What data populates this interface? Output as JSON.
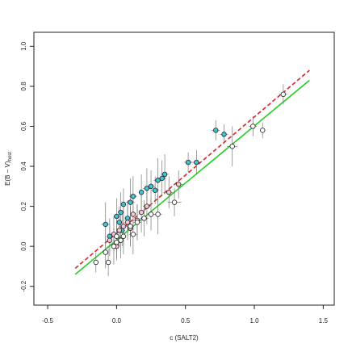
{
  "chart_data": {
    "type": "scatter",
    "xlabel": "c (SALT2)",
    "ylabel": "E(B − V)",
    "ylabel_sub": "host",
    "xlim": [
      -0.6,
      1.58
    ],
    "ylim": [
      -0.294,
      1.07
    ],
    "xticks": [
      -0.5,
      {
        "value": 0,
        "label": "0.0"
      },
      0.5,
      {
        "value": 1,
        "label": "1.0"
      },
      1.5
    ],
    "yticks": [
      -0.2,
      {
        "value": 0,
        "label": "0.0"
      },
      0.2,
      0.4,
      0.6,
      0.8,
      {
        "value": 1,
        "label": "1.0"
      }
    ],
    "series": [
      {
        "color": "#3fc4d4",
        "x": [
          0.58,
          0.52,
          0.72,
          0.78,
          0.35,
          0.3,
          0.33,
          0.25,
          0.22,
          0.18,
          0.1,
          0.05,
          0.03,
          0.0,
          -0.08,
          0.02,
          0.08,
          0.12,
          0.28,
          0.04,
          -0.05
        ],
        "values": [
          0.42,
          0.42,
          0.58,
          0.56,
          0.36,
          0.33,
          0.34,
          0.3,
          0.29,
          0.27,
          0.22,
          0.21,
          0.17,
          0.15,
          0.11,
          0.12,
          0.14,
          0.25,
          0.28,
          0.08,
          0.05
        ],
        "yerr": [
          0.06,
          0.05,
          0.05,
          0.05,
          0.1,
          0.11,
          0.09,
          0.08,
          0.1,
          0.09,
          0.12,
          0.08,
          0.1,
          0.09,
          0.11,
          0.08,
          0.09,
          0.1,
          0.07,
          0.08,
          0.09
        ],
        "xerr": [
          0.04,
          0.03,
          0.03,
          0.03,
          0.03,
          0.03,
          0.03,
          0.03,
          0.03,
          0.02,
          0.03,
          0.02,
          0.02,
          0.02,
          0.03,
          0.02,
          0.02,
          0.03,
          0.03,
          0.02,
          0.02
        ]
      },
      {
        "color": "#f6c6cf",
        "x": [
          0.45,
          0.38,
          0.22,
          0.18,
          0.12,
          0.08,
          0.05,
          0.02,
          -0.02,
          -0.05,
          0.0,
          0.1,
          0.15
        ],
        "values": [
          0.31,
          0.27,
          0.2,
          0.17,
          0.16,
          0.12,
          0.1,
          0.08,
          0.06,
          0.03,
          0.0,
          0.09,
          0.13
        ],
        "yerr": [
          0.07,
          0.08,
          0.09,
          0.1,
          0.08,
          0.09,
          0.1,
          0.08,
          0.09,
          0.08,
          0.07,
          0.09,
          0.08
        ],
        "xerr": [
          0.03,
          0.03,
          0.03,
          0.02,
          0.02,
          0.02,
          0.03,
          0.02,
          0.02,
          0.02,
          0.02,
          0.02,
          0.03
        ]
      },
      {
        "color": "#ffffff",
        "x": [
          1.21,
          1.06,
          0.99,
          0.84,
          0.42,
          0.3,
          0.25,
          0.2,
          0.1,
          0.05,
          0.0,
          -0.02,
          -0.08,
          -0.06,
          -0.15,
          0.12,
          0.15,
          0.0,
          0.03
        ],
        "values": [
          0.76,
          0.58,
          0.6,
          0.5,
          0.22,
          0.16,
          0.16,
          0.14,
          0.1,
          0.05,
          0.02,
          0.0,
          -0.03,
          -0.08,
          -0.08,
          0.06,
          0.12,
          0.05,
          0.03
        ],
        "yerr": [
          0.05,
          0.04,
          0.05,
          0.1,
          0.07,
          0.1,
          0.08,
          0.09,
          0.1,
          0.09,
          0.08,
          0.09,
          0.08,
          0.07,
          0.05,
          0.1,
          0.09,
          0.08,
          0.09
        ],
        "xerr": [
          0.03,
          0.02,
          0.03,
          0.04,
          0.05,
          0.03,
          0.03,
          0.03,
          0.02,
          0.02,
          0.02,
          0.02,
          0.02,
          0.02,
          0.02,
          0.03,
          0.03,
          0.02,
          0.02
        ]
      }
    ],
    "lines": [
      {
        "color": "#22cc22",
        "dashed": false,
        "x": [
          -0.3,
          1.4
        ],
        "values": [
          -0.14,
          0.83
        ]
      },
      {
        "color": "#e0202a",
        "dashed": true,
        "x": [
          -0.3,
          1.4
        ],
        "values": [
          -0.11,
          0.88
        ]
      }
    ]
  }
}
